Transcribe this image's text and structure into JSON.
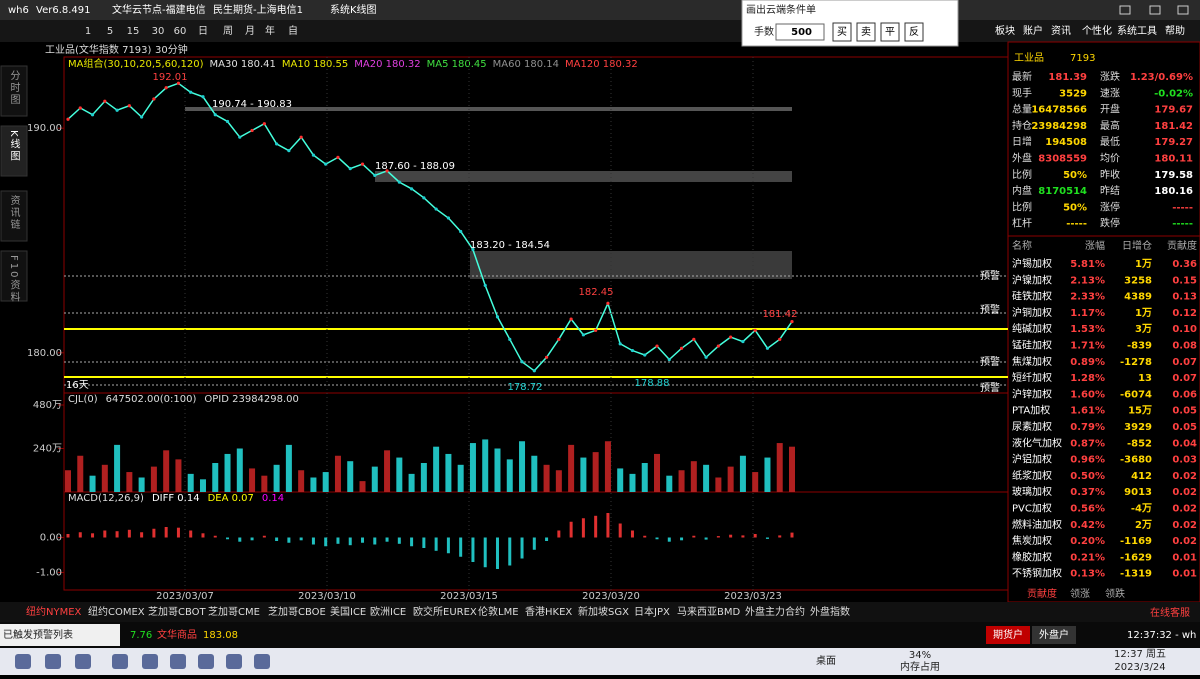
{
  "title_bar": {
    "app": "wh6",
    "version": "Ver6.8.491",
    "items": [
      "文华云节点-福建电信",
      "民生期货-上海电信1",
      "系统K线图"
    ]
  },
  "toolbar": {
    "periods": [
      "1",
      "5",
      "15",
      "30",
      "60",
      "日",
      "周",
      "月",
      "年",
      "自"
    ]
  },
  "popup": {
    "title": "画出云端条件单",
    "qty_label": "手数",
    "qty": "500",
    "buttons": [
      "买",
      "卖",
      "平",
      "反"
    ]
  },
  "menu": [
    "板块",
    "账户",
    "资讯",
    "个性化",
    "系统工具",
    "帮助"
  ],
  "instrument": {
    "name": "工业品(文华指数 7193)",
    "period": "30分钟"
  },
  "side_tabs": [
    "分时图",
    "K线图",
    "资讯链",
    "F10资料"
  ],
  "ma_legend": [
    {
      "text": "MA组合(30,10,20,5,60,120)",
      "color": "#e8e800"
    },
    {
      "text": "MA30 180.41",
      "color": "#e0e0e0"
    },
    {
      "text": "MA10 180.55",
      "color": "#e8e800"
    },
    {
      "text": "MA20 180.32",
      "color": "#e040e0"
    },
    {
      "text": "MA5 180.45",
      "color": "#40e040"
    },
    {
      "text": "MA60 180.14",
      "color": "#909090"
    },
    {
      "text": "MA120 180.32",
      "color": "#ff4040"
    }
  ],
  "chart": {
    "ylim": [
      178.21,
      193.17
    ],
    "yticks": [
      {
        "value": 190,
        "label": "190.00"
      },
      {
        "value": 180,
        "label": "180.00"
      }
    ],
    "close": [
      190.4,
      190.9,
      190.6,
      191.2,
      190.8,
      191.0,
      190.5,
      191.3,
      191.8,
      192.0,
      191.6,
      191.4,
      190.6,
      190.3,
      189.6,
      189.9,
      190.2,
      189.3,
      189.0,
      189.6,
      188.8,
      188.4,
      188.7,
      188.2,
      188.4,
      187.9,
      188.1,
      187.6,
      187.3,
      186.9,
      186.4,
      186.0,
      185.4,
      184.6,
      183.0,
      181.6,
      180.6,
      179.6,
      179.2,
      179.8,
      180.6,
      181.5,
      180.8,
      181.0,
      182.2,
      180.4,
      180.1,
      179.9,
      180.3,
      179.7,
      180.2,
      180.6,
      179.8,
      180.3,
      180.7,
      180.5,
      181.0,
      180.2,
      180.6,
      181.39
    ],
    "annotations": [
      "192.01",
      "190.74 - 190.83",
      "187.60 - 188.09",
      "183.20 - 184.54",
      "182.45",
      "181.42",
      "178.72",
      "178.88",
      "16天"
    ],
    "alerts": [
      "预警",
      "预警",
      "预警",
      "预警"
    ],
    "dates": [
      "2023/03/07",
      "2023/03/10",
      "2023/03/15",
      "2023/03/20",
      "2023/03/23"
    ]
  },
  "volume": {
    "labels": [
      "CJL(0)",
      "647502.00(0:100)",
      "OPID 23984298.00"
    ],
    "ylim": [
      0,
      480
    ],
    "yticks": [
      {
        "value": 480,
        "label": "480万"
      },
      {
        "value": 240,
        "label": "240万"
      }
    ],
    "values": [
      120,
      200,
      90,
      150,
      260,
      110,
      80,
      140,
      230,
      180,
      100,
      70,
      160,
      210,
      240,
      130,
      90,
      150,
      260,
      120,
      80,
      110,
      200,
      170,
      60,
      140,
      230,
      190,
      100,
      160,
      250,
      210,
      150,
      270,
      290,
      240,
      180,
      280,
      200,
      150,
      120,
      260,
      190,
      220,
      280,
      130,
      100,
      160,
      210,
      90,
      120,
      170,
      150,
      80,
      140,
      200,
      110,
      190,
      270,
      250
    ]
  },
  "macd": {
    "labels": [
      "MACD(12,26,9)",
      "DIFF 0.14",
      "DEA 0.07",
      "0.14"
    ],
    "ylim": [
      -1.5,
      1.3
    ],
    "yticks": [
      {
        "value": 0,
        "label": "0.00"
      },
      {
        "value": -1,
        "label": "-1.00"
      }
    ],
    "values": [
      0.1,
      0.15,
      0.12,
      0.2,
      0.18,
      0.22,
      0.15,
      0.25,
      0.3,
      0.28,
      0.2,
      0.12,
      0.05,
      -0.05,
      -0.12,
      -0.08,
      0.05,
      -0.1,
      -0.15,
      -0.08,
      -0.2,
      -0.25,
      -0.18,
      -0.22,
      -0.15,
      -0.2,
      -0.12,
      -0.18,
      -0.25,
      -0.3,
      -0.38,
      -0.45,
      -0.55,
      -0.7,
      -0.85,
      -0.9,
      -0.8,
      -0.6,
      -0.35,
      -0.1,
      0.2,
      0.45,
      0.55,
      0.62,
      0.7,
      0.4,
      0.2,
      0.05,
      -0.05,
      -0.12,
      -0.08,
      0.05,
      -0.06,
      0.04,
      0.08,
      0.06,
      0.1,
      -0.04,
      0.06,
      0.14
    ]
  },
  "quote": {
    "name": "工业品",
    "code": "7193",
    "rows": [
      [
        "最新",
        "181.39",
        "涨跌",
        "1.23/0.69%"
      ],
      [
        "现手",
        "3529",
        "速涨",
        "-0.02%"
      ],
      [
        "总量",
        "16478566",
        "开盘",
        "179.67"
      ],
      [
        "持仓",
        "23984298",
        "最高",
        "181.42"
      ],
      [
        "日增",
        "194508",
        "最低",
        "179.27"
      ],
      [
        "外盘",
        "8308559",
        "均价",
        "180.11"
      ],
      [
        "比例",
        "50%",
        "昨收",
        "179.58"
      ],
      [
        "内盘",
        "8170514",
        "昨结",
        "180.16"
      ],
      [
        "比例",
        "50%",
        "涨停",
        "-----"
      ],
      [
        "杠杆",
        "-----",
        "跌停",
        "-----"
      ]
    ]
  },
  "sectors": {
    "header": [
      "名称",
      "涨幅",
      "日增仓",
      "贡献度"
    ],
    "rows": [
      [
        "沪锡加权",
        "5.81%",
        "1万",
        "0.36"
      ],
      [
        "沪镍加权",
        "2.13%",
        "3258",
        "0.15"
      ],
      [
        "硅铁加权",
        "2.33%",
        "4389",
        "0.13"
      ],
      [
        "沪铜加权",
        "1.17%",
        "1万",
        "0.12"
      ],
      [
        "纯碱加权",
        "1.53%",
        "3万",
        "0.10"
      ],
      [
        "锰硅加权",
        "1.71%",
        "-839",
        "0.08"
      ],
      [
        "焦煤加权",
        "0.89%",
        "-1278",
        "0.07"
      ],
      [
        "短纤加权",
        "1.28%",
        "13",
        "0.07"
      ],
      [
        "沪锌加权",
        "1.60%",
        "-6074",
        "0.06"
      ],
      [
        "PTA加权",
        "1.61%",
        "15万",
        "0.05"
      ],
      [
        "尿素加权",
        "0.79%",
        "3929",
        "0.05"
      ],
      [
        "液化气加权",
        "0.87%",
        "-852",
        "0.04"
      ],
      [
        "沪铝加权",
        "0.96%",
        "-3680",
        "0.03"
      ],
      [
        "纸浆加权",
        "0.50%",
        "412",
        "0.02"
      ],
      [
        "玻璃加权",
        "0.37%",
        "9013",
        "0.02"
      ],
      [
        "PVC加权",
        "0.56%",
        "-4万",
        "0.02"
      ],
      [
        "燃料油加权",
        "0.42%",
        "2万",
        "0.02"
      ],
      [
        "焦炭加权",
        "0.20%",
        "-1169",
        "0.02"
      ],
      [
        "橡胶加权",
        "0.21%",
        "-1629",
        "0.01"
      ],
      [
        "不锈钢加权",
        "0.13%",
        "-1319",
        "0.01"
      ]
    ],
    "tabs": [
      "贡献度",
      "领涨",
      "领跌"
    ]
  },
  "exchanges": {
    "tabs": [
      "纽约NYMEX",
      "纽约COMEX",
      "芝加哥CBOT",
      "芝加哥CME",
      "芝加哥CBOE",
      "美国ICE",
      "欧洲ICE",
      "欧交所EUREX",
      "伦敦LME",
      "香港HKEX",
      "新加坡SGX",
      "日本JPX",
      "马来西亚BMD",
      "外盘主力合约",
      "外盘指数"
    ],
    "service": "在线客服"
  },
  "status": {
    "alerts": "已触发预警列表",
    "ticker_a": "7.76",
    "ticker_name": "文华商品",
    "ticker_b": "183.08",
    "account_a": "期货户",
    "account_b": "外盘户",
    "clock": "12:37:32 - wh"
  },
  "taskbar": {
    "desktop": "桌面",
    "memory": "34%",
    "memory_label": "内存占用",
    "time": "12:37 周五",
    "date": "2023/3/24"
  }
}
